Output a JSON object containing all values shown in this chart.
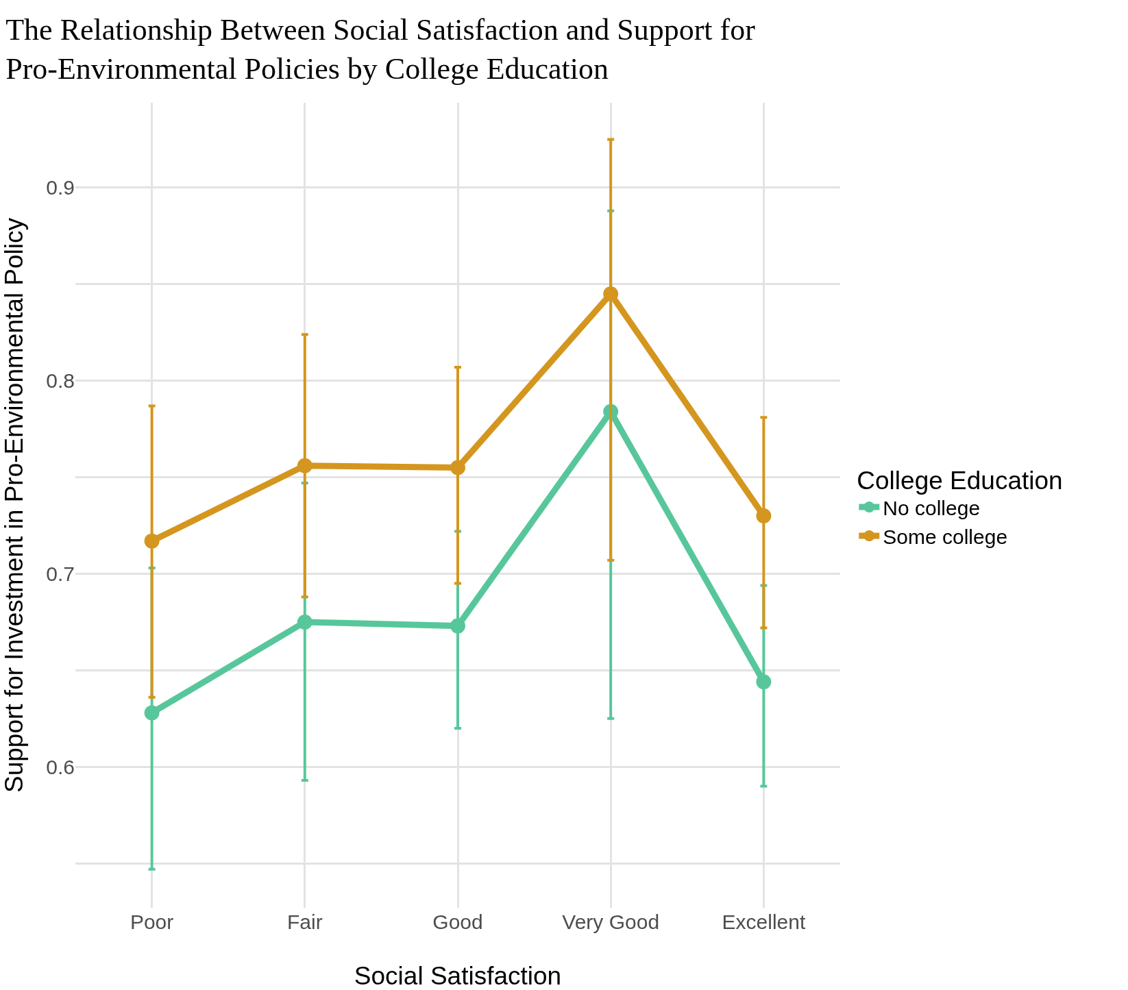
{
  "chart_data": {
    "type": "line",
    "title": "The Relationship Between Social Satisfaction and Support for Pro-Environmental Policies by College Education",
    "xlabel": "Social Satisfaction",
    "ylabel": "Support for Investment in Pro-Environmental Policy",
    "legend_title": "College Education",
    "categories": [
      "Poor",
      "Fair",
      "Good",
      "Very Good",
      "Excellent"
    ],
    "series": [
      {
        "name": "No college",
        "color": "#57c79b",
        "values": [
          0.628,
          0.675,
          0.673,
          0.784,
          0.644
        ],
        "errors": [
          [
            0.547,
            0.703
          ],
          [
            0.593,
            0.747
          ],
          [
            0.62,
            0.722
          ],
          [
            0.625,
            0.888
          ],
          [
            0.59,
            0.694
          ]
        ]
      },
      {
        "name": "Some college",
        "color": "#d4961e",
        "values": [
          0.717,
          0.756,
          0.755,
          0.845,
          0.73
        ],
        "errors": [
          [
            0.636,
            0.787
          ],
          [
            0.688,
            0.824
          ],
          [
            0.695,
            0.807
          ],
          [
            0.707,
            0.925
          ],
          [
            0.672,
            0.781
          ]
        ]
      }
    ],
    "ylim": [
      0.527,
      0.944
    ],
    "yticks": [
      {
        "value": 0.55,
        "label": null
      },
      0.6,
      {
        "value": 0.65,
        "label": null
      },
      0.7,
      {
        "value": 0.75,
        "label": null
      },
      0.8,
      {
        "value": 0.85,
        "label": null
      },
      0.9
    ],
    "grid": true,
    "legend": "right",
    "marker": "circle",
    "line_style": "solid"
  }
}
